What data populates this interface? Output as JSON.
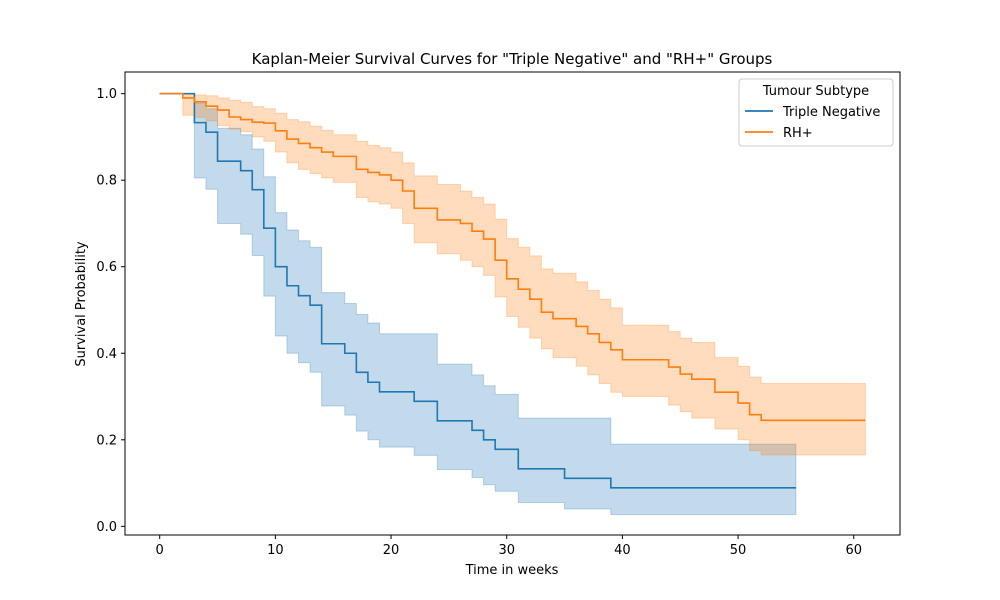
{
  "chart_data": {
    "type": "line",
    "title": "Kaplan-Meier Survival Curves for \"Triple Negative\" and \"RH+\" Groups",
    "xlabel": "Time in weeks",
    "ylabel": "Survival Probability",
    "xlim": [
      -3,
      64
    ],
    "ylim": [
      -0.02,
      1.05
    ],
    "xticks": [
      0,
      10,
      20,
      30,
      40,
      50,
      60
    ],
    "yticks": [
      0.0,
      0.2,
      0.4,
      0.6,
      0.8,
      1.0
    ],
    "xtick_labels": [
      "0",
      "10",
      "20",
      "30",
      "40",
      "50",
      "60"
    ],
    "ytick_labels": [
      "0.0",
      "0.2",
      "0.4",
      "0.6",
      "0.8",
      "1.0"
    ],
    "grid": false,
    "legend": {
      "title": "Tumour Subtype",
      "placement": "top-right"
    },
    "series": [
      {
        "name": "Triple Negative",
        "color": "#1f77b4",
        "fill_color": "#1f77b4",
        "x": [
          0,
          3,
          4,
          5,
          7,
          8,
          9,
          10,
          11,
          12,
          13,
          14,
          16,
          17,
          18,
          19,
          22,
          24,
          27,
          28,
          29,
          31,
          35,
          39,
          55
        ],
        "y": [
          1.0,
          0.933,
          0.911,
          0.844,
          0.822,
          0.778,
          0.689,
          0.6,
          0.556,
          0.533,
          0.511,
          0.422,
          0.4,
          0.356,
          0.333,
          0.311,
          0.289,
          0.244,
          0.222,
          0.2,
          0.178,
          0.133,
          0.111,
          0.089,
          0.089
        ],
        "ci_lower": [
          1.0,
          0.805,
          0.779,
          0.7,
          0.675,
          0.626,
          0.532,
          0.44,
          0.4,
          0.378,
          0.356,
          0.278,
          0.257,
          0.22,
          0.2,
          0.183,
          0.164,
          0.131,
          0.113,
          0.096,
          0.081,
          0.055,
          0.04,
          0.027,
          0.027
        ],
        "ci_upper": [
          1.0,
          0.978,
          0.965,
          0.92,
          0.905,
          0.872,
          0.808,
          0.725,
          0.685,
          0.66,
          0.645,
          0.54,
          0.515,
          0.49,
          0.47,
          0.445,
          0.445,
          0.375,
          0.35,
          0.325,
          0.305,
          0.25,
          0.25,
          0.19,
          0.19
        ]
      },
      {
        "name": "RH+",
        "color": "#ff7f0e",
        "fill_color": "#ff7f0e",
        "x": [
          0,
          2,
          3,
          4,
          5,
          6,
          7,
          8,
          9,
          10,
          11,
          12,
          13,
          14,
          15,
          17,
          18,
          19,
          20,
          21,
          22,
          24,
          26,
          27,
          28,
          29,
          30,
          31,
          32,
          33,
          34,
          36,
          37,
          38,
          39,
          40,
          44,
          45,
          46,
          48,
          50,
          51,
          52,
          61
        ],
        "y": [
          1.0,
          0.99,
          0.981,
          0.971,
          0.962,
          0.946,
          0.94,
          0.934,
          0.932,
          0.914,
          0.895,
          0.885,
          0.875,
          0.865,
          0.855,
          0.825,
          0.818,
          0.812,
          0.8,
          0.775,
          0.735,
          0.708,
          0.7,
          0.682,
          0.664,
          0.615,
          0.572,
          0.548,
          0.525,
          0.495,
          0.48,
          0.462,
          0.445,
          0.425,
          0.408,
          0.385,
          0.368,
          0.352,
          0.34,
          0.31,
          0.285,
          0.258,
          0.245,
          0.245
        ],
        "ci_lower": [
          1.0,
          0.95,
          0.945,
          0.937,
          0.926,
          0.918,
          0.912,
          0.9,
          0.89,
          0.865,
          0.84,
          0.825,
          0.815,
          0.805,
          0.795,
          0.76,
          0.75,
          0.745,
          0.735,
          0.7,
          0.655,
          0.63,
          0.615,
          0.6,
          0.58,
          0.53,
          0.485,
          0.46,
          0.435,
          0.41,
          0.39,
          0.37,
          0.35,
          0.33,
          0.31,
          0.3,
          0.28,
          0.265,
          0.25,
          0.225,
          0.2,
          0.175,
          0.165,
          0.165
        ],
        "ci_upper": [
          1.0,
          0.998,
          0.997,
          0.995,
          0.99,
          0.985,
          0.98,
          0.97,
          0.965,
          0.955,
          0.94,
          0.935,
          0.925,
          0.915,
          0.905,
          0.89,
          0.88,
          0.875,
          0.865,
          0.84,
          0.81,
          0.79,
          0.775,
          0.76,
          0.745,
          0.71,
          0.665,
          0.645,
          0.625,
          0.595,
          0.585,
          0.565,
          0.545,
          0.525,
          0.505,
          0.465,
          0.45,
          0.435,
          0.425,
          0.39,
          0.37,
          0.345,
          0.33,
          0.33
        ]
      }
    ]
  }
}
